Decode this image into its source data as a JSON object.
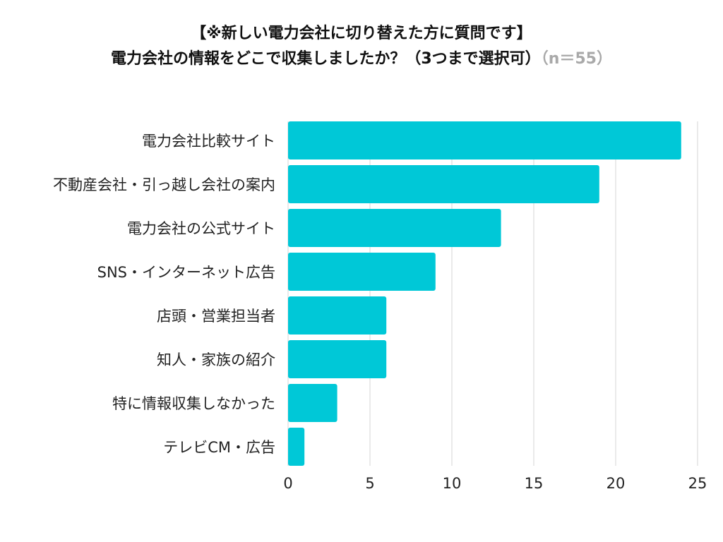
{
  "chart_data": {
    "type": "bar",
    "orientation": "horizontal",
    "title_line1": "【※新しい電力会社に切り替えた方に質問です】",
    "title_line2": "電力会社の情報をどこで収集しましたか？（3つまで選択可）",
    "title_note": "（n＝55）",
    "categories": [
      "電力会社比較サイト",
      "不動産会社・引っ越し会社の案内",
      "電力会社の公式サイト",
      "SNS・インターネット広告",
      "店頭・営業担当者",
      "知人・家族の紹介",
      "特に情報収集しなかった",
      "テレビCM・広告"
    ],
    "values": [
      24,
      19,
      13,
      9,
      6,
      6,
      3,
      1
    ],
    "xlim": [
      0,
      25
    ],
    "xticks": [
      "0",
      "5",
      "10",
      "15",
      "20",
      "25"
    ],
    "grid": true,
    "bar_color": "#00C8D7",
    "grid_color": "#d6d6d6"
  }
}
